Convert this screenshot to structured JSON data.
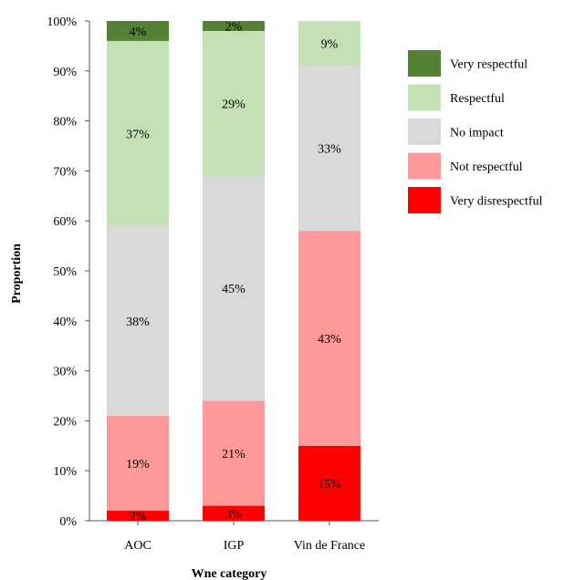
{
  "chart_data": {
    "type": "bar",
    "stacked": true,
    "xlabel": "Wne category",
    "ylabel": "Proportion",
    "ylim": [
      0,
      100
    ],
    "yticks": [
      "0%",
      "10%",
      "20%",
      "30%",
      "40%",
      "50%",
      "60%",
      "70%",
      "80%",
      "90%",
      "100%"
    ],
    "categories": [
      "AOC",
      "IGP",
      "Vin de France"
    ],
    "series": [
      {
        "name": "Very disrespectful",
        "color": "#ff0000",
        "values": [
          2,
          3,
          15
        ],
        "labels": [
          "2%",
          "3%",
          "15%"
        ]
      },
      {
        "name": "Not respectful",
        "color": "#ff9999",
        "values": [
          19,
          21,
          43
        ],
        "labels": [
          "19%",
          "21%",
          "43%"
        ]
      },
      {
        "name": "No impact",
        "color": "#d9d9d9",
        "values": [
          38,
          45,
          33
        ],
        "labels": [
          "38%",
          "45%",
          "33%"
        ]
      },
      {
        "name": "Respectful",
        "color": "#c5e0b4",
        "values": [
          37,
          29,
          9
        ],
        "labels": [
          "37%",
          "29%",
          "9%"
        ]
      },
      {
        "name": "Very respectful",
        "color": "#548235",
        "values": [
          4,
          2,
          0
        ],
        "labels": [
          "4%",
          "2%",
          ""
        ]
      }
    ],
    "legend_order": [
      "Very respectful",
      "Respectful",
      "No impact",
      "Not respectful",
      "Very disrespectful"
    ],
    "legend_position": "right",
    "grid": false
  }
}
